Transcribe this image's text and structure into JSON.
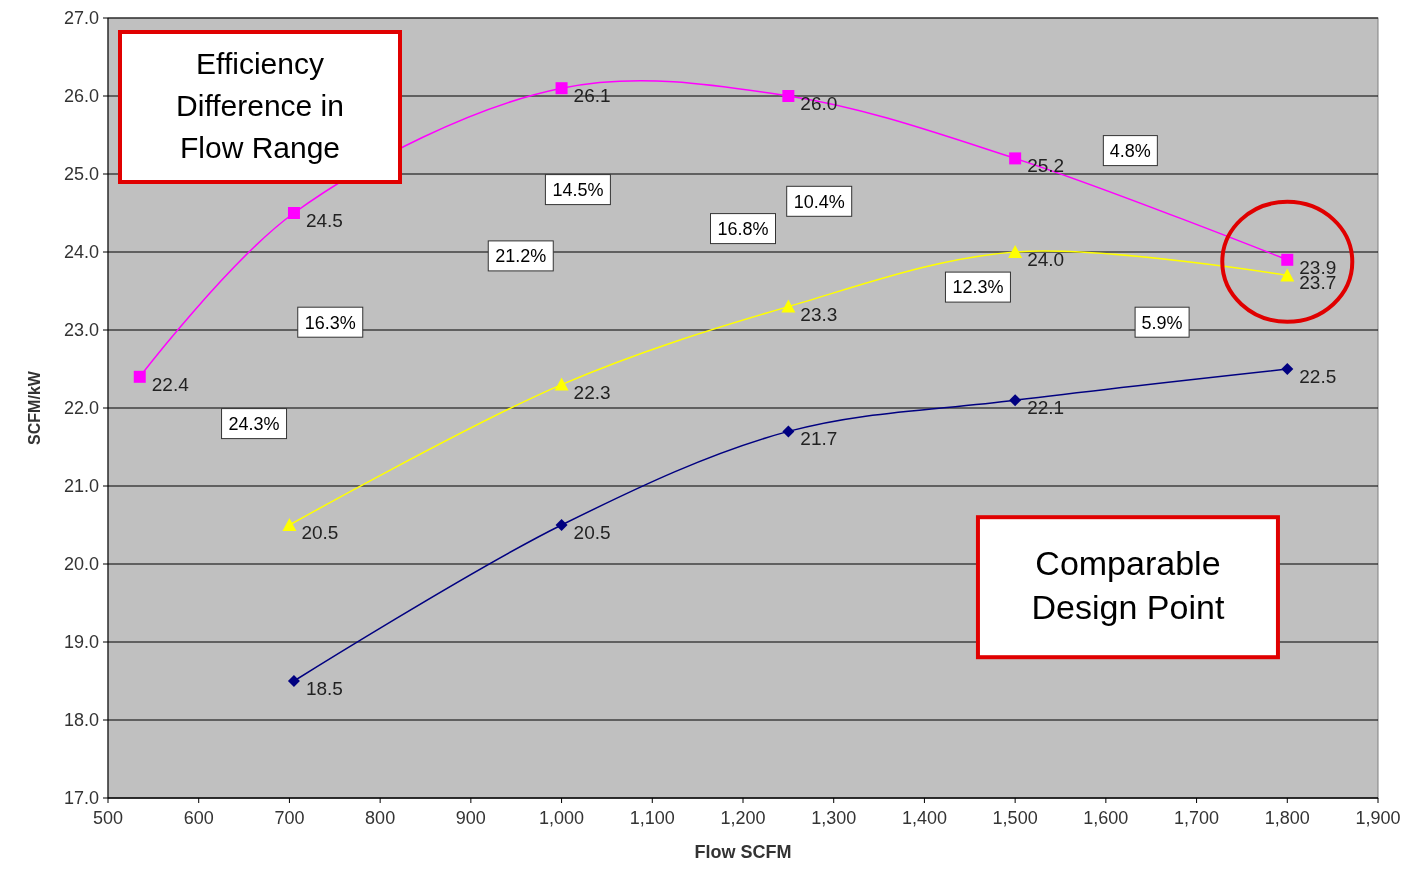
{
  "chart_data": {
    "type": "line",
    "xlabel": "Flow SCFM",
    "ylabel": "SCFM/kW",
    "xlim": [
      500,
      1900
    ],
    "xticks": [
      500,
      600,
      700,
      800,
      900,
      {
        "value": 1000,
        "label": "1,000"
      },
      {
        "value": 1100,
        "label": "1,100"
      },
      {
        "value": 1200,
        "label": "1,200"
      },
      {
        "value": 1300,
        "label": "1,300"
      },
      {
        "value": 1400,
        "label": "1,400"
      },
      {
        "value": 1500,
        "label": "1,500"
      },
      {
        "value": 1600,
        "label": "1,600"
      },
      {
        "value": 1700,
        "label": "1,700"
      },
      {
        "value": 1800,
        "label": "1,800"
      },
      {
        "value": 1900,
        "label": "1,900"
      }
    ],
    "ylim": [
      17,
      27
    ],
    "yticks": [
      {
        "value": 17,
        "label": "17.0"
      },
      {
        "value": 18,
        "label": "18.0"
      },
      {
        "value": 19,
        "label": "19.0"
      },
      {
        "value": 20,
        "label": "20.0"
      },
      {
        "value": 21,
        "label": "21.0"
      },
      {
        "value": 22,
        "label": "22.0"
      },
      {
        "value": 23,
        "label": "23.0"
      },
      {
        "value": 24,
        "label": "24.0"
      },
      {
        "value": 25,
        "label": "25.0"
      },
      {
        "value": 26,
        "label": "26.0"
      },
      {
        "value": 27,
        "label": "27.0"
      }
    ],
    "grid": "y",
    "series": [
      {
        "color": "#ff00ff",
        "marker": "square",
        "x": [
          535,
          705,
          1000,
          1250,
          1500,
          1800
        ],
        "values": [
          22.4,
          24.5,
          26.1,
          26.0,
          25.2,
          23.9
        ],
        "value_labels": [
          "22.4",
          "24.5",
          "26.1",
          "26.0",
          "25.2",
          "23.9"
        ]
      },
      {
        "color": "#ffff00",
        "marker": "triangle",
        "x": [
          700,
          1000,
          1250,
          1500,
          1800
        ],
        "values": [
          20.5,
          22.3,
          23.3,
          24.0,
          23.7
        ],
        "value_labels": [
          "20.5",
          "22.3",
          "23.3",
          "24.0",
          "23.7"
        ]
      },
      {
        "color": "#000080",
        "marker": "diamond",
        "x": [
          705,
          1000,
          1250,
          1500,
          1800
        ],
        "values": [
          18.5,
          20.5,
          21.7,
          22.1,
          22.5
        ],
        "value_labels": [
          "18.5",
          "20.5",
          "21.7",
          "22.1",
          "22.5"
        ]
      }
    ],
    "annotations": [
      "Efficiency Difference  in Flow Range",
      "Comparable Design Point",
      "24.3%",
      "16.3%",
      "21.2%",
      "14.5%",
      "16.8%",
      "10.4%",
      "12.3%",
      "4.8%",
      "5.9%"
    ]
  }
}
